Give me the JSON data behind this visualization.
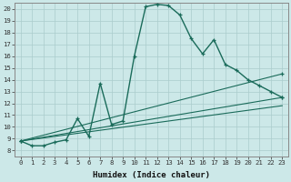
{
  "xlabel": "Humidex (Indice chaleur)",
  "xlim": [
    -0.5,
    23.5
  ],
  "ylim": [
    7.5,
    20.5
  ],
  "xticks": [
    0,
    1,
    2,
    3,
    4,
    5,
    6,
    7,
    8,
    9,
    10,
    11,
    12,
    13,
    14,
    15,
    16,
    17,
    18,
    19,
    20,
    21,
    22,
    23
  ],
  "yticks": [
    8,
    9,
    10,
    11,
    12,
    13,
    14,
    15,
    16,
    17,
    18,
    19,
    20
  ],
  "bg_color": "#cce8e8",
  "line_color": "#1a6b5a",
  "grid_color": "#aacccc",
  "lines": [
    {
      "x": [
        0,
        1,
        2,
        3,
        4,
        5,
        6,
        7,
        8,
        9,
        10,
        11,
        12,
        13,
        14,
        15,
        16,
        17,
        18,
        19,
        20,
        21,
        22,
        23
      ],
      "y": [
        8.8,
        8.4,
        8.4,
        8.7,
        8.9,
        10.7,
        9.2,
        13.7,
        10.2,
        10.5,
        16.0,
        20.2,
        20.4,
        20.3,
        19.5,
        17.5,
        16.2,
        17.4,
        15.3,
        14.8,
        14.0,
        13.5,
        13.0,
        12.5
      ],
      "marker": true,
      "lw": 1.0
    },
    {
      "x": [
        0,
        23
      ],
      "y": [
        8.8,
        14.5
      ],
      "marker": true,
      "lw": 0.8
    },
    {
      "x": [
        0,
        23
      ],
      "y": [
        8.8,
        12.5
      ],
      "marker": true,
      "lw": 0.8
    },
    {
      "x": [
        0,
        23
      ],
      "y": [
        8.8,
        11.8
      ],
      "marker": false,
      "lw": 0.8
    }
  ]
}
